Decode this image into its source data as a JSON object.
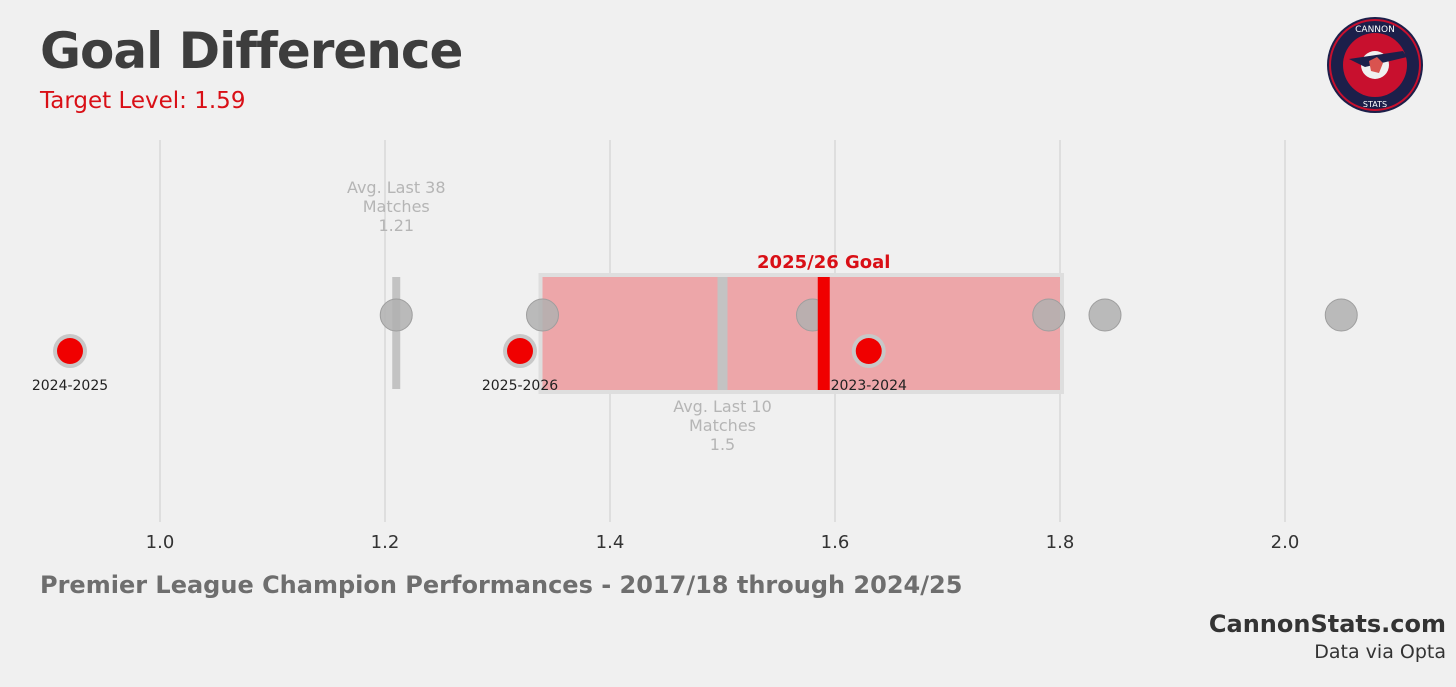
{
  "header": {
    "title": "Goal Difference",
    "target_label": "Target Level: 1.59"
  },
  "logo": {
    "top_text": "CANNON",
    "bottom_text": "STATS"
  },
  "footer": {
    "subtitle": "Premier League Champion Performances - 2017/18 through 2024/25",
    "site": "CannonStats.com",
    "source": "Data via Opta"
  },
  "colors": {
    "background": "#f0f0f0",
    "accent_red": "#d90f16",
    "range_fill": "#eda6a9",
    "champion_dot": "#b0b0b0",
    "grid": "#cccccc"
  },
  "chart_data": {
    "type": "scatter",
    "xlim": [
      0.9,
      2.15
    ],
    "x_ticks": [
      1.0,
      1.2,
      1.4,
      1.6,
      1.8,
      2.0
    ],
    "x_tick_labels": [
      "1.0",
      "1.2",
      "1.4",
      "1.6",
      "1.8",
      "2.0"
    ],
    "grid": "vertical",
    "champion_values": [
      1.21,
      1.34,
      1.58,
      1.79,
      1.84,
      2.05
    ],
    "range": {
      "min": 1.34,
      "max": 1.8
    },
    "season_points": [
      {
        "label": "2024-2025",
        "value": 0.92
      },
      {
        "label": "2025-2026",
        "value": 1.32
      },
      {
        "label": "2023-2024",
        "value": 1.63
      }
    ],
    "goal": {
      "value": 1.59,
      "label": "2025/26 Goal"
    },
    "avg_last_38": {
      "value": 1.21,
      "label_lines": [
        "Avg. Last 38",
        "Matches",
        "1.21"
      ]
    },
    "avg_last_10": {
      "value": 1.5,
      "label_lines": [
        "Avg. Last 10",
        "Matches",
        "1.5"
      ]
    }
  }
}
